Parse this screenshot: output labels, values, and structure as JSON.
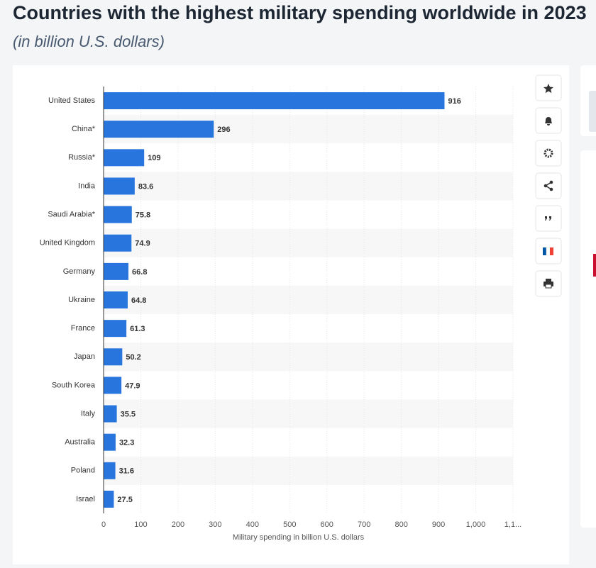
{
  "chart_data": {
    "type": "bar",
    "orientation": "horizontal",
    "title": "Countries with the highest military spending worldwide in 2023",
    "subtitle": "(in billion U.S. dollars)",
    "x_label": "Military spending in billion U.S. dollars",
    "categories": [
      "United States",
      "China*",
      "Russia*",
      "India",
      "Saudi Arabia*",
      "United Kingdom",
      "Germany",
      "Ukraine",
      "France",
      "Japan",
      "South Korea",
      "Italy",
      "Australia",
      "Poland",
      "Israel"
    ],
    "values": [
      916,
      296,
      109,
      83.6,
      75.8,
      74.9,
      66.8,
      64.8,
      61.3,
      50.2,
      47.9,
      35.5,
      32.3,
      31.6,
      27.5
    ],
    "color": "#2876dd",
    "xlim": [
      0,
      1100
    ],
    "xticks": [
      0,
      100,
      200,
      300,
      400,
      500,
      600,
      700,
      800,
      900,
      {
        "value": 1000,
        "label": "1,000"
      },
      {
        "value": 1100,
        "label": "1,1..."
      }
    ],
    "grid": true
  }
}
